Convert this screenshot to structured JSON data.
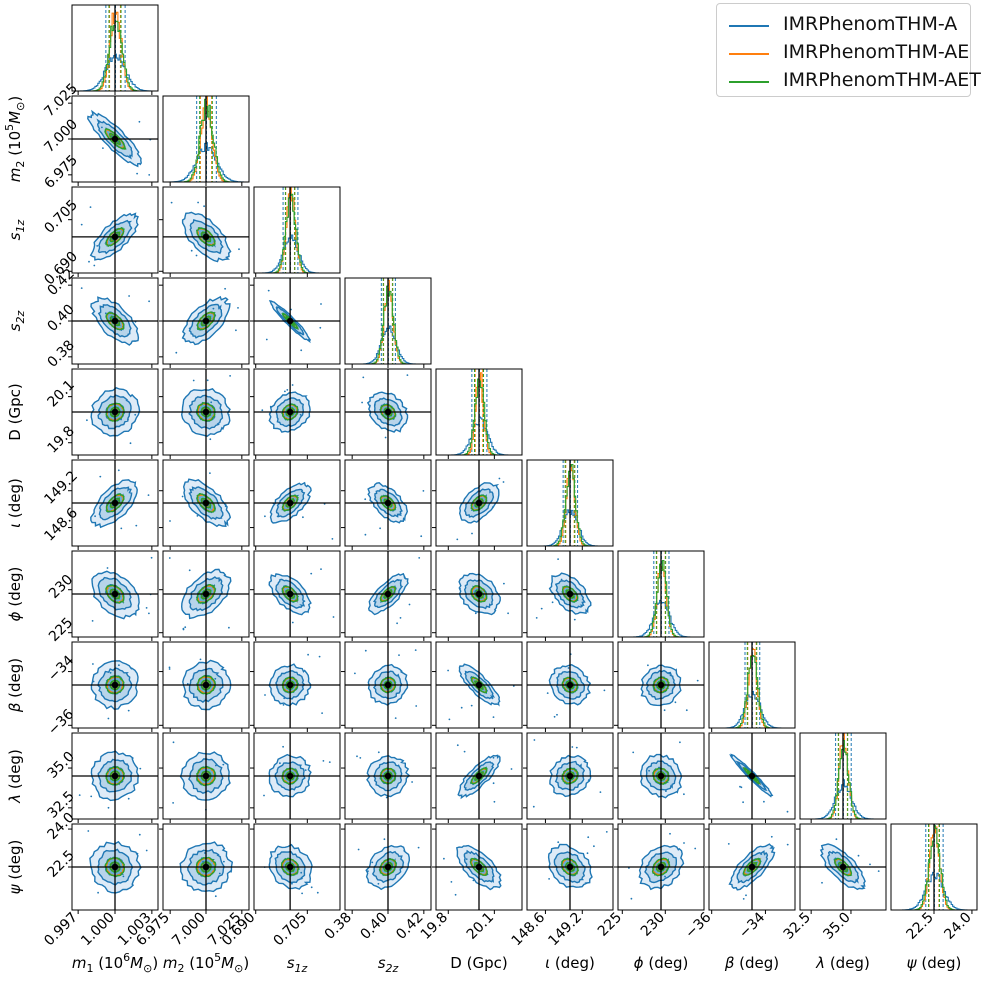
{
  "legend": {
    "entries": [
      {
        "label": "IMRPhenomTHM-A",
        "color": "#1f77b4"
      },
      {
        "label": "IMRPhenomTHM-AE",
        "color": "#ff7f0e"
      },
      {
        "label": "IMRPhenomTHM-AET",
        "color": "#2ca02c"
      }
    ]
  },
  "chart_data": {
    "type": "corner",
    "title": "",
    "series": [
      "IMRPhenomTHM-A",
      "IMRPhenomTHM-AE",
      "IMRPhenomTHM-AET"
    ],
    "parameters": [
      {
        "label": "m₁ (10⁶M⊙)",
        "label_html": "<tspan font-style='italic'>m</tspan><tspan dy='4' font-size='11'>1</tspan><tspan dy='-4'> (10</tspan><tspan dy='-7' font-size='11'>6</tspan><tspan dy='7' font-style='italic'>M</tspan><tspan dy='4' font-size='11'>⊙</tspan><tspan dy='-4'>)</tspan>",
        "range": [
          0.9965,
          1.0035
        ],
        "truth": 1.0,
        "ticks": [
          0.997,
          1.0,
          1.003
        ],
        "tick_labels": [
          "0.997",
          "1.000",
          "1.003"
        ],
        "spread": [
          0.0008,
          0.00045,
          0.0005
        ]
      },
      {
        "label": "m₂ (10⁵M⊙)",
        "label_html": "<tspan font-style='italic'>m</tspan><tspan dy='4' font-size='11'>2</tspan><tspan dy='-4'> (10</tspan><tspan dy='-7' font-size='11'>5</tspan><tspan dy='7' font-style='italic'>M</tspan><tspan dy='4' font-size='11'>⊙</tspan><tspan dy='-4'>)</tspan>",
        "range": [
          6.97,
          7.03
        ],
        "truth": 7.0,
        "ticks": [
          6.975,
          7.0,
          7.025
        ],
        "tick_labels": [
          "6.975",
          "7.000",
          "7.025"
        ],
        "spread": [
          0.007,
          0.004,
          0.0045
        ]
      },
      {
        "label": "s₁z",
        "label_html": "<tspan font-style='italic'>s</tspan><tspan dy='4' font-size='11' font-style='italic'>1z</tspan>",
        "range": [
          0.6895,
          0.7145
        ],
        "truth": 0.7,
        "ticks": [
          0.69,
          0.705
        ],
        "tick_labels": [
          "0.690",
          "0.705"
        ],
        "spread": [
          0.0022,
          0.0013,
          0.0014
        ]
      },
      {
        "label": "s₂z",
        "label_html": "<tspan font-style='italic'>s</tspan><tspan dy='4' font-size='11' font-style='italic'>2z</tspan>",
        "range": [
          0.376,
          0.424
        ],
        "truth": 0.4,
        "ticks": [
          0.38,
          0.4,
          0.42
        ],
        "tick_labels": [
          "0.38",
          "0.40",
          "0.42"
        ],
        "spread": [
          0.004,
          0.0025,
          0.0027
        ]
      },
      {
        "label": "D (Gpc)",
        "label_html": "D (Gpc)",
        "range": [
          19.72,
          20.28
        ],
        "truth": 20.0,
        "ticks": [
          19.8,
          20.1
        ],
        "tick_labels": [
          "19.8",
          "20.1"
        ],
        "spread": [
          0.05,
          0.025,
          0.03
        ]
      },
      {
        "label": "ι (deg)",
        "label_html": "<tspan font-style='italic'>ι</tspan> (deg)",
        "range": [
          148.3,
          149.7
        ],
        "truth": 149.0,
        "ticks": [
          148.6,
          149.2
        ],
        "tick_labels": [
          "148.6",
          "149.2"
        ],
        "spread": [
          0.12,
          0.07,
          0.08
        ]
      },
      {
        "label": "ϕ (deg)",
        "label_html": "<tspan font-style='italic'>ϕ</tspan> (deg)",
        "range": [
          224.5,
          234.5
        ],
        "truth": 229.5,
        "ticks": [
          225,
          230
        ],
        "tick_labels": [
          "225",
          "230"
        ],
        "spread": [
          0.9,
          0.5,
          0.55
        ]
      },
      {
        "label": "β (deg)",
        "label_html": "<tspan font-style='italic'>β</tspan> (deg)",
        "range": [
          -36.1,
          -32.9
        ],
        "truth": -34.5,
        "ticks": [
          -36,
          -34
        ],
        "tick_labels": [
          "−36",
          "−34"
        ],
        "spread": [
          0.28,
          0.16,
          0.18
        ]
      },
      {
        "label": "λ (deg)",
        "label_html": "<tspan font-style='italic'>λ</tspan> (deg)",
        "range": [
          31.8,
          37.2
        ],
        "truth": 34.5,
        "ticks": [
          32.5,
          35.0
        ],
        "tick_labels": [
          "32.5",
          "35.0"
        ],
        "spread": [
          0.5,
          0.28,
          0.3
        ]
      },
      {
        "label": "ψ (deg)",
        "label_html": "<tspan font-style='italic'>ψ</tspan> (deg)",
        "range": [
          20.8,
          24.2
        ],
        "truth": 22.5,
        "ticks": [
          22.5,
          24.0
        ],
        "tick_labels": [
          "22.5",
          "24.0"
        ],
        "spread": [
          0.35,
          0.2,
          0.22
        ]
      }
    ],
    "correlations": [
      [
        1,
        -0.85,
        0.7,
        -0.6,
        0.1,
        0.6,
        -0.4,
        0.05,
        0.05,
        -0.05
      ],
      [
        -0.85,
        1,
        -0.6,
        0.6,
        -0.1,
        -0.6,
        0.45,
        0.05,
        0.05,
        0.05
      ],
      [
        0.7,
        -0.6,
        1,
        -0.95,
        0.2,
        0.6,
        -0.55,
        0.05,
        0.05,
        -0.2
      ],
      [
        -0.6,
        0.6,
        -0.95,
        1,
        -0.3,
        -0.55,
        0.7,
        0.05,
        0.05,
        0.3
      ],
      [
        0.1,
        -0.1,
        0.2,
        -0.3,
        1,
        0.5,
        -0.3,
        -0.8,
        0.8,
        -0.65
      ],
      [
        0.6,
        -0.6,
        0.6,
        -0.55,
        0.5,
        1,
        -0.5,
        -0.15,
        0.15,
        -0.3
      ],
      [
        -0.4,
        0.45,
        -0.55,
        0.7,
        -0.3,
        -0.5,
        1,
        0.1,
        -0.1,
        0.3
      ],
      [
        0.05,
        0.05,
        0.05,
        0.05,
        -0.8,
        -0.15,
        0.1,
        1,
        -0.97,
        0.7
      ],
      [
        0.05,
        0.05,
        0.05,
        0.05,
        0.8,
        0.15,
        -0.1,
        -0.97,
        1,
        -0.7
      ],
      [
        -0.05,
        0.05,
        -0.2,
        0.3,
        -0.65,
        -0.3,
        0.3,
        0.7,
        -0.7,
        1
      ]
    ],
    "x_labels_row": [
      "m1 (10^6 Msun)",
      "m2 (10^5 Msun)",
      "s1z",
      "s2z",
      "D (Gpc)",
      "iota (deg)",
      "phi (deg)",
      "beta (deg)",
      "lambda (deg)",
      "psi (deg)"
    ],
    "colors": {
      "A": "#1f77b4",
      "AE": "#ff7f0e",
      "AET": "#2ca02c",
      "truth": "#000000"
    }
  }
}
